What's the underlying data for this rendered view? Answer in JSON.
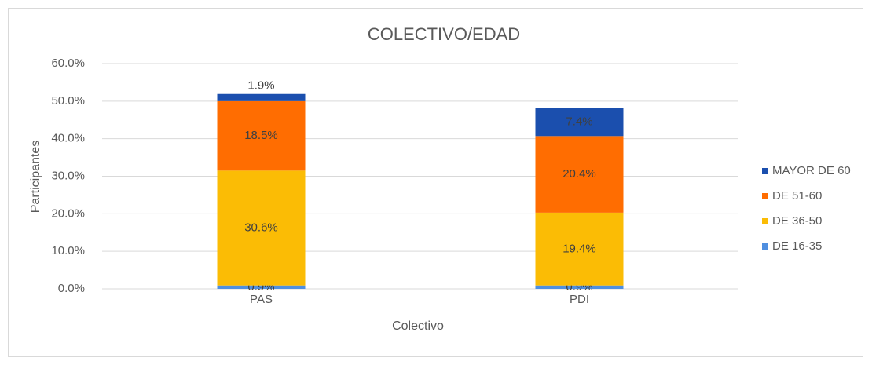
{
  "chart_data": {
    "type": "stacked_bar",
    "title": "COLECTIVO/EDAD",
    "x_label": "Colectivo",
    "y_label": "Participantes",
    "categories": [
      "PAS",
      "PDI"
    ],
    "series": [
      {
        "name": "DE 16-35",
        "color": "#4f8fe0",
        "values": [
          0.9,
          0.9
        ],
        "value_labels": [
          "0.9%",
          "0.9%"
        ]
      },
      {
        "name": "DE 36-50",
        "color": "#fbbc05",
        "values": [
          30.6,
          19.4
        ],
        "value_labels": [
          "30.6%",
          "19.4%"
        ]
      },
      {
        "name": "DE 51-60",
        "color": "#ff6d01",
        "values": [
          18.5,
          20.4
        ],
        "value_labels": [
          "18.5%",
          "20.4%"
        ]
      },
      {
        "name": "MAYOR DE 60",
        "color": "#1b4fae",
        "values": [
          1.9,
          7.4
        ],
        "value_labels": [
          "1.9%",
          "7.4%"
        ]
      }
    ],
    "ylim": [
      0,
      60
    ],
    "yticks": [
      {
        "value": 0,
        "label": "0.0%"
      },
      {
        "value": 10,
        "label": "10.0%"
      },
      {
        "value": 20,
        "label": "20.0%"
      },
      {
        "value": 30,
        "label": "30.0%"
      },
      {
        "value": 40,
        "label": "40.0%"
      },
      {
        "value": 50,
        "label": "50.0%"
      },
      {
        "value": 60,
        "label": "60.0%"
      }
    ],
    "grid": true,
    "legend": "right"
  }
}
